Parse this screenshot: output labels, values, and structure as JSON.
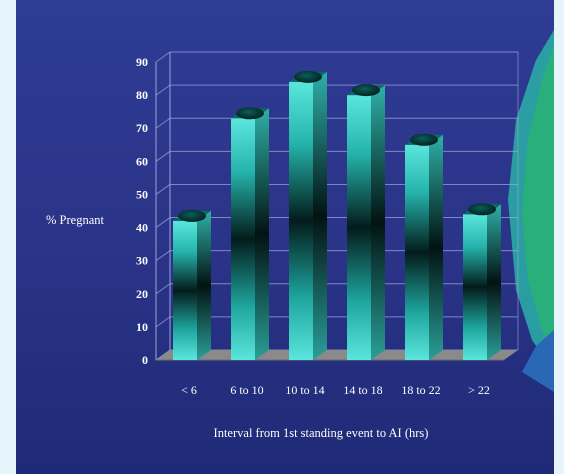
{
  "chart_data": {
    "type": "bar",
    "categories": [
      "< 6",
      "6 to 10",
      "10 to 14",
      "14 to 18",
      "18 to 22",
      "> 22"
    ],
    "values": [
      42,
      73,
      84,
      80,
      65,
      44
    ],
    "xlabel": "Interval from 1st standing event to AI (hrs)",
    "ylabel": "% Pregnant",
    "ylim": [
      0,
      90
    ],
    "yticks": [
      0,
      10,
      20,
      30,
      40,
      50,
      60,
      70,
      80,
      90
    ],
    "grid": true,
    "legend": "none",
    "bar_style": "3d-cylinder",
    "colors": {
      "background": "#2a3387",
      "bar_light": "#40d8d0",
      "bar_dark": "#04201e",
      "floor": "#8a8a8a",
      "grid": "#9aa3d8"
    }
  },
  "decor": {
    "shapes": [
      "teal-ribbon",
      "green-ribbon"
    ]
  }
}
